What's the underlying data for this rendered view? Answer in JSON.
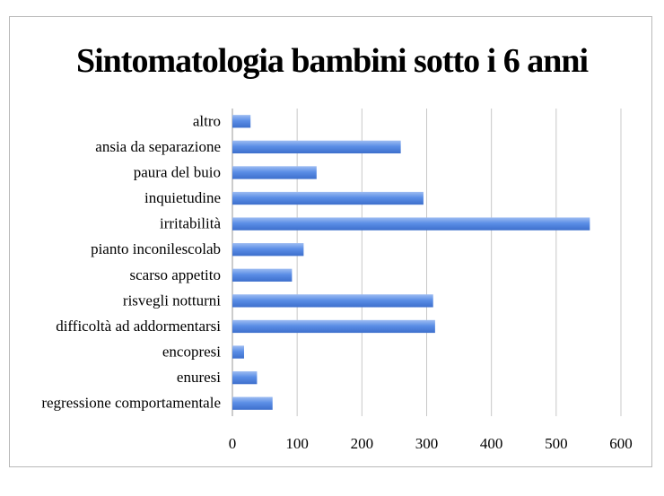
{
  "chart_data": {
    "type": "bar",
    "orientation": "horizontal",
    "title": "Sintomatologia bambini sotto i 6 anni",
    "categories": [
      "altro",
      "ansia da separazione",
      "paura del buio",
      "inquietudine",
      "irritabilità",
      "pianto inconilescolab",
      "scarso appetito",
      "risvegli notturni",
      "difficoltà ad addormentarsi",
      "encopresi",
      "enuresi",
      "regressione comportamentale"
    ],
    "values": [
      28,
      260,
      130,
      295,
      552,
      110,
      92,
      310,
      313,
      18,
      38,
      62
    ],
    "xlim": [
      0,
      600
    ],
    "xticks": [
      0,
      100,
      200,
      300,
      400,
      500,
      600
    ],
    "xlabel": "",
    "ylabel": "",
    "grid": true,
    "legend": "none",
    "bar_color": "#4a7fd8"
  }
}
